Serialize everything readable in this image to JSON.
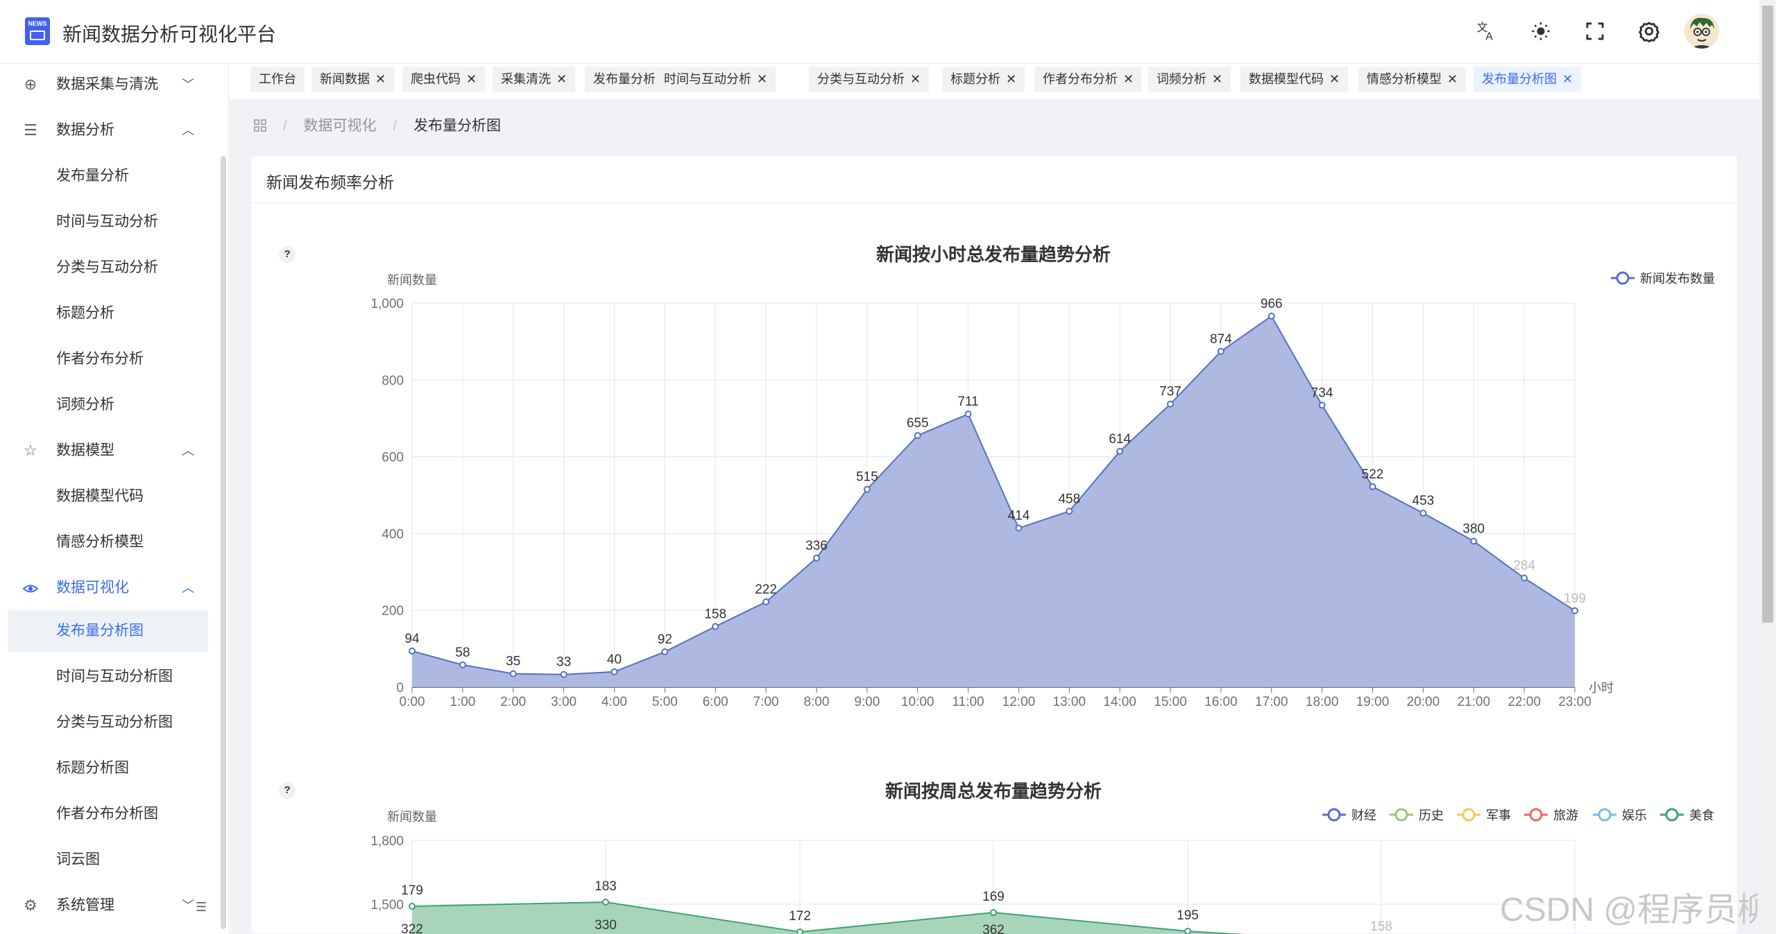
{
  "header": {
    "logo_text": "NEWS",
    "title": "新闻数据分析可视化平台",
    "icons": [
      "translate-icon",
      "theme-icon",
      "fullscreen-icon",
      "settings-icon"
    ]
  },
  "sidebar": {
    "groups": [
      {
        "label": "数据采集与清洗",
        "icon": "plus-circle-icon",
        "expanded": false
      },
      {
        "label": "数据分析",
        "icon": "list-icon",
        "expanded": true,
        "items": [
          "发布量分析",
          "时间与互动分析",
          "分类与互动分析",
          "标题分析",
          "作者分布分析",
          "词频分析"
        ]
      },
      {
        "label": "数据模型",
        "icon": "star-icon",
        "expanded": true,
        "items": [
          "数据模型代码",
          "情感分析模型"
        ]
      },
      {
        "label": "数据可视化",
        "icon": "eye-icon",
        "expanded": true,
        "active": true,
        "items": [
          "发布量分析图",
          "时间与互动分析图",
          "分类与互动分析图",
          "标题分析图",
          "作者分布分析图",
          "词云图"
        ]
      },
      {
        "label": "系统管理",
        "icon": "gear-icon",
        "expanded": false
      }
    ],
    "active_item": "发布量分析图"
  },
  "tabs": [
    {
      "label": "工作台",
      "closable": false
    },
    {
      "label": "新闻数据",
      "closable": true
    },
    {
      "label": "爬虫代码",
      "closable": true
    },
    {
      "label": "采集清洗",
      "closable": true
    },
    {
      "label": "发布量分析",
      "closable": true
    },
    {
      "label": "时间与互动分析",
      "closable": true
    },
    {
      "label": "分类与互动分析",
      "closable": true
    },
    {
      "label": "标题分析",
      "closable": true
    },
    {
      "label": "作者分布分析",
      "closable": true
    },
    {
      "label": "词频分析",
      "closable": true
    },
    {
      "label": "数据模型代码",
      "closable": true
    },
    {
      "label": "情感分析模型",
      "closable": true
    },
    {
      "label": "发布量分析图",
      "closable": true,
      "active": true
    }
  ],
  "tab_close_symbol": "✕",
  "breadcrumb": {
    "items": [
      "数据可视化",
      "发布量分析图"
    ],
    "separator": "/"
  },
  "card": {
    "title": "新闻发布频率分析"
  },
  "help_symbol": "?",
  "watermark": "CSDN @程序员柳",
  "colors": {
    "accent": "#3b6cf0",
    "hourly_series": "#5470c6",
    "hourly_fill": "#a9b5df"
  },
  "chart_data": [
    {
      "type": "area",
      "title": "新闻按小时总发布量趋势分析",
      "ylabel": "新闻数量",
      "xlabel": "小时",
      "ylim": [
        0,
        1000
      ],
      "yticks": [
        "0",
        "200",
        "400",
        "600",
        "800",
        "1,000"
      ],
      "legend": "top-right",
      "grid": true,
      "categories": [
        "0:00",
        "1:00",
        "2:00",
        "3:00",
        "4:00",
        "5:00",
        "6:00",
        "7:00",
        "8:00",
        "9:00",
        "10:00",
        "11:00",
        "12:00",
        "13:00",
        "14:00",
        "15:00",
        "16:00",
        "17:00",
        "18:00",
        "19:00",
        "20:00",
        "21:00",
        "22:00",
        "23:00"
      ],
      "series": [
        {
          "name": "新闻发布数量",
          "color": "#5470c6",
          "values": [
            94,
            58,
            35,
            33,
            40,
            92,
            158,
            222,
            336,
            515,
            655,
            711,
            414,
            458,
            614,
            737,
            874,
            966,
            734,
            522,
            453,
            380,
            284,
            199
          ]
        }
      ]
    },
    {
      "type": "area",
      "title": "新闻按周总发布量趋势分析",
      "ylabel": "新闻数量",
      "ylim": [
        0,
        1800
      ],
      "yticks": [
        "1,500",
        "1,800"
      ],
      "legend": "top-right",
      "grid": true,
      "series": [
        {
          "name": "财经",
          "color": "#5470c6"
        },
        {
          "name": "历史",
          "color": "#91cc75"
        },
        {
          "name": "军事",
          "color": "#fac858"
        },
        {
          "name": "旅游",
          "color": "#ee6666"
        },
        {
          "name": "娱乐",
          "color": "#73c0de"
        },
        {
          "name": "美食",
          "color": "#3ba272",
          "visible_labels": [
            179,
            183,
            172,
            169,
            195,
            158
          ],
          "second_row_labels": [
            322,
            330,
            362
          ]
        }
      ]
    }
  ]
}
